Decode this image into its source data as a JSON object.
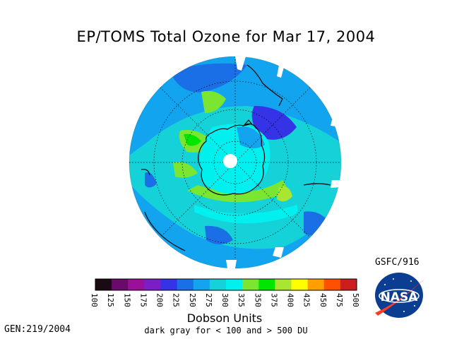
{
  "title": "EP/TOMS Total Ozone for Mar 17, 2004",
  "credit": "GSFC/916",
  "legend": {
    "unit_label": "Dobson Units",
    "note": "dark gray for < 100 and > 500 DU",
    "tick_labels": [
      "100",
      "125",
      "150",
      "175",
      "200",
      "225",
      "250",
      "275",
      "300",
      "325",
      "350",
      "375",
      "400",
      "425",
      "450",
      "475",
      "500"
    ],
    "colors": [
      "#1a0a14",
      "#6b0a6b",
      "#9b0f9b",
      "#7a1fc8",
      "#3434e6",
      "#1a6ee6",
      "#12a4ee",
      "#14d2d8",
      "#00f0f0",
      "#7ae632",
      "#00e600",
      "#a8e632",
      "#ffff00",
      "#ffa000",
      "#ff5000",
      "#cc1e1e",
      "#8a1a1a",
      "#4a1010"
    ]
  },
  "footer": {
    "gen": "GEN:219/2004"
  },
  "logo": {
    "text": "NASA"
  },
  "map": {
    "projection": "south-polar-orthographic",
    "center": "South Pole",
    "data_gap_at_pole": true
  }
}
